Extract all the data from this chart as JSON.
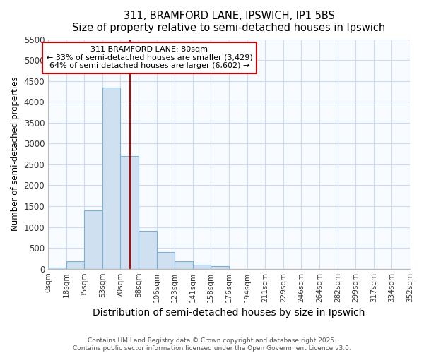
{
  "title": "311, BRAMFORD LANE, IPSWICH, IP1 5BS",
  "subtitle": "Size of property relative to semi-detached houses in Ipswich",
  "xlabel": "Distribution of semi-detached houses by size in Ipswich",
  "ylabel": "Number of semi-detached properties",
  "bin_edges": [
    0,
    18,
    35,
    53,
    70,
    88,
    106,
    123,
    141,
    158,
    176,
    194,
    211,
    229,
    246,
    264,
    282,
    299,
    317,
    334,
    352
  ],
  "bar_heights": [
    25,
    175,
    1400,
    4350,
    2700,
    900,
    400,
    175,
    100,
    65,
    0,
    0,
    0,
    0,
    0,
    0,
    0,
    0,
    0,
    0
  ],
  "bar_color": "#cfe0f0",
  "bar_edge_color": "#7ab0d4",
  "vline_x": 80,
  "vline_color": "#cc0000",
  "annotation_title": "311 BRAMFORD LANE: 80sqm",
  "annotation_line2": "← 33% of semi-detached houses are smaller (3,429)",
  "annotation_line3": "64% of semi-detached houses are larger (6,602) →",
  "annotation_box_edgecolor": "#cc0000",
  "ylim": [
    0,
    5500
  ],
  "yticks": [
    0,
    500,
    1000,
    1500,
    2000,
    2500,
    3000,
    3500,
    4000,
    4500,
    5000,
    5500
  ],
  "tick_labels": [
    "0sqm",
    "18sqm",
    "35sqm",
    "53sqm",
    "70sqm",
    "88sqm",
    "106sqm",
    "123sqm",
    "141sqm",
    "158sqm",
    "176sqm",
    "194sqm",
    "211sqm",
    "229sqm",
    "246sqm",
    "264sqm",
    "282sqm",
    "299sqm",
    "317sqm",
    "334sqm",
    "352sqm"
  ],
  "footer_line1": "Contains HM Land Registry data © Crown copyright and database right 2025.",
  "footer_line2": "Contains public sector information licensed under the Open Government Licence v3.0.",
  "fig_bg_color": "#ffffff",
  "plot_bg_color": "#f8fbff",
  "grid_color": "#ccddf0"
}
